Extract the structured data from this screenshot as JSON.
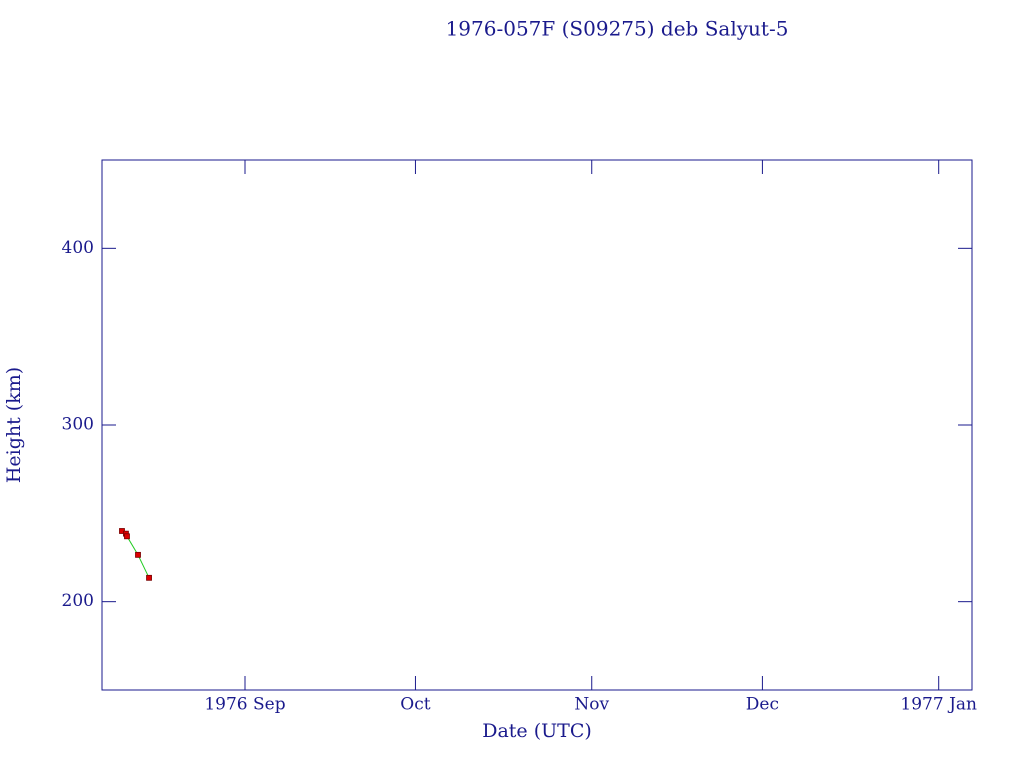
{
  "chart_data": {
    "type": "line",
    "title": "1976-057F (S09275) deb Salyut-5",
    "x_label": "Date (UTC)",
    "y_label": "Height (km)",
    "x": [
      1976.6076,
      1976.6095,
      1976.61,
      1976.6153,
      1976.6206
    ],
    "series": [
      {
        "name": "Height",
        "color": "#22cc22",
        "marker_color": "#dd0000",
        "values": [
          240,
          238.5,
          237,
          226.5,
          213.5
        ]
      }
    ],
    "xlim": [
      1976.598,
      1977.016
    ],
    "xticks": [
      {
        "value": 1976.6667,
        "label": "1976 Sep"
      },
      {
        "value": 1976.7486,
        "label": "Oct"
      },
      {
        "value": 1976.8333,
        "label": "Nov"
      },
      {
        "value": 1976.9153,
        "label": "Dec"
      },
      {
        "value": 1977.0,
        "label": "1977 Jan"
      }
    ],
    "ylim": [
      150,
      450
    ],
    "yticks": [
      200,
      300,
      400
    ],
    "grid": false
  }
}
